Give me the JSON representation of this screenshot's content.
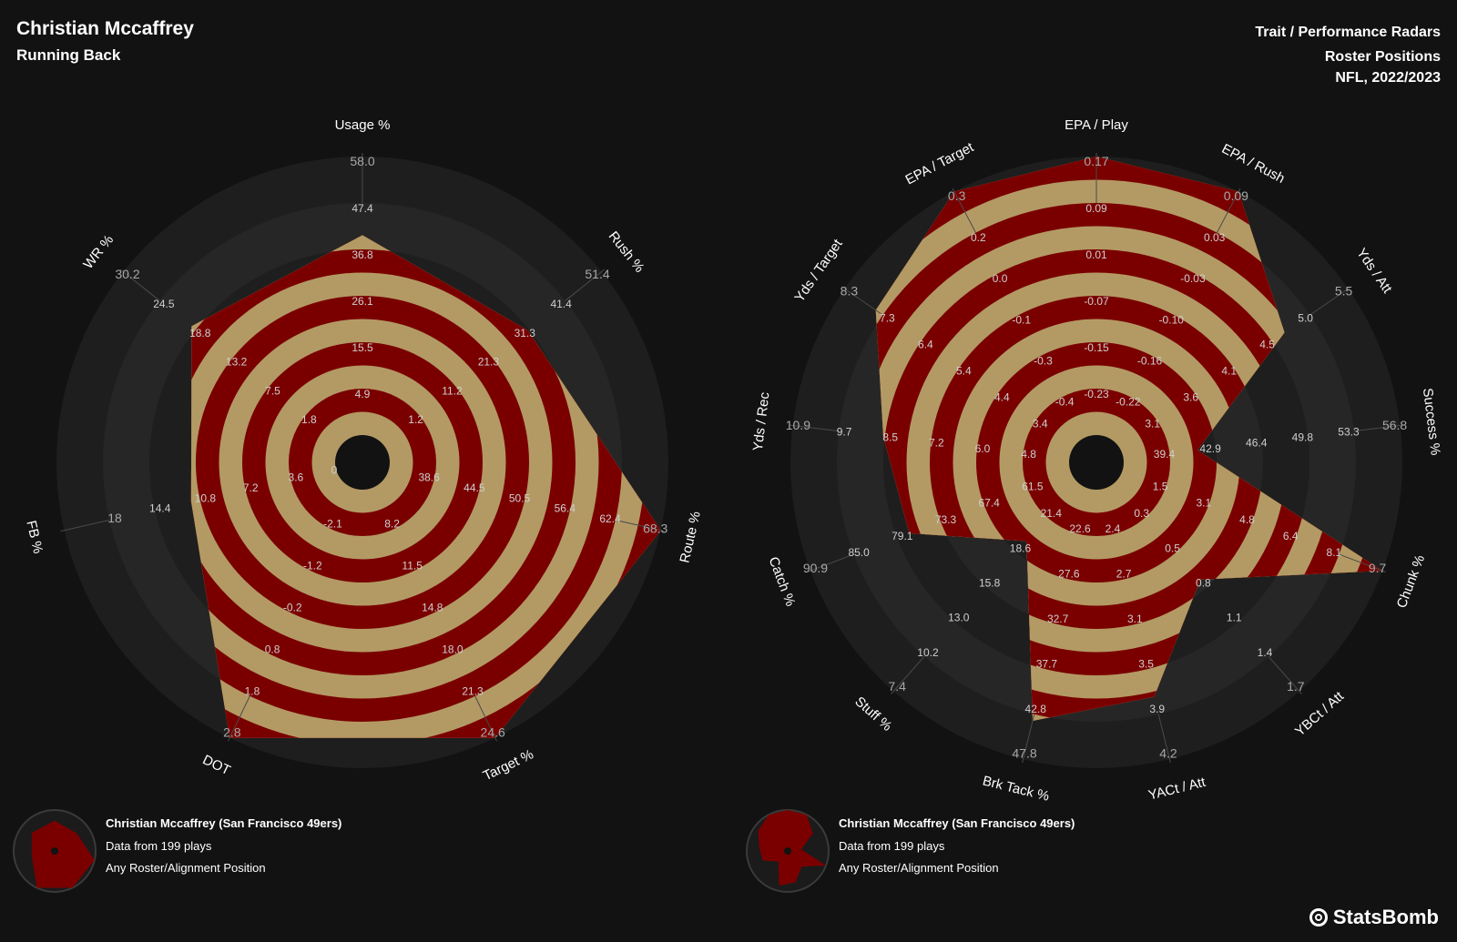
{
  "header": {
    "player_name": "Christian Mccaffrey",
    "position": "Running Back",
    "title": "Trait / Performance Radars",
    "subtitle": "Roster Positions",
    "season": "NFL, 2022/2023"
  },
  "colors": {
    "background": "#121212",
    "ring_dark": "#1e1e1e",
    "ring_light": "#262626",
    "fill_red": "#7a0000",
    "fill_gold": "#b39a64"
  },
  "chart_data": [
    {
      "type": "radar",
      "name": "Trait radar",
      "axes": [
        {
          "label": "Usage %",
          "ticks": [
            "4.9",
            "15.5",
            "26.1",
            "36.8",
            "47.4",
            "58.0"
          ],
          "value": 40
        },
        {
          "label": "Rush %",
          "ticks": [
            "1.2",
            "11.2",
            "21.3",
            "31.3",
            "41.4",
            "51.4"
          ],
          "value": 31
        },
        {
          "label": "Route %",
          "ticks": [
            "38.6",
            "44.5",
            "50.5",
            "56.4",
            "62.4",
            "68.3"
          ],
          "value": 68.3
        },
        {
          "label": "Target %",
          "ticks": [
            "8.2",
            "11.5",
            "14.8",
            "18.0",
            "21.3",
            "24.6"
          ],
          "value": 24.6
        },
        {
          "label": "DOT",
          "ticks": [
            "-2.1",
            "-1.2",
            "-0.2",
            "0.8",
            "1.8",
            "2.8"
          ],
          "value": 2.8
        },
        {
          "label": "FB %",
          "ticks": [
            "3.6",
            "7.2",
            "10.8",
            "14.4",
            "18"
          ],
          "value": 11.5
        },
        {
          "label": "WR %",
          "ticks": [
            "1.8",
            "7.5",
            "13.2",
            "18.8",
            "24.5",
            "30.2"
          ],
          "value": 19.5
        }
      ],
      "extra_tick_labels": [
        "0"
      ]
    },
    {
      "type": "radar",
      "name": "Performance radar",
      "axes": [
        {
          "label": "EPA / Play",
          "ticks": [
            "-0.23",
            "-0.15",
            "-0.07",
            "0.01",
            "0.09",
            "0.17"
          ],
          "value": 0.17
        },
        {
          "label": "EPA / Rush",
          "ticks": [
            "-0.22",
            "-0.16",
            "-0.10",
            "-0.03",
            "0.03",
            "0.09"
          ],
          "value": 0.09
        },
        {
          "label": "Yds / Att",
          "ticks": [
            "3.1",
            "3.6",
            "4.1",
            "4.5",
            "5.0",
            "5.5"
          ],
          "value": 4.7
        },
        {
          "label": "Success %",
          "ticks": [
            "39.4",
            "42.9",
            "46.4",
            "49.8",
            "53.3",
            "56.8"
          ],
          "value": 41.5
        },
        {
          "label": "Chunk %",
          "ticks": [
            "1.5",
            "3.1",
            "4.8",
            "6.4",
            "8.1",
            "9.7"
          ],
          "value": 9.7
        },
        {
          "label": "YBCt / Att",
          "ticks": [
            "0.3",
            "0.5",
            "0.8",
            "1.1",
            "1.4",
            "1.7"
          ],
          "value": 0.8
        },
        {
          "label": "YACt / Att",
          "ticks": [
            "2.4",
            "2.7",
            "3.1",
            "3.5",
            "3.9",
            "4.2"
          ],
          "value": 3.7
        },
        {
          "label": "Brk Tack %",
          "ticks": [
            "22.6",
            "27.6",
            "32.7",
            "37.7",
            "42.8",
            "47.8"
          ],
          "value": 43.5
        },
        {
          "label": "Stuff %",
          "ticks": [
            "21.4",
            "18.6",
            "15.8",
            "13.0",
            "10.2",
            "7.4"
          ],
          "value": 19.5
        },
        {
          "label": "Catch %",
          "ticks": [
            "61.5",
            "67.4",
            "73.3",
            "79.1",
            "85.0",
            "90.9"
          ],
          "value": 77.5
        },
        {
          "label": "Yds / Rec",
          "ticks": [
            "4.8",
            "6.0",
            "7.2",
            "8.5",
            "9.7",
            "10.9"
          ],
          "value": 8.5
        },
        {
          "label": "Yds / Target",
          "ticks": [
            "3.4",
            "4.4",
            "5.4",
            "6.4",
            "7.3",
            "8.3"
          ],
          "value": 7.5
        },
        {
          "label": "EPA / Target",
          "ticks": [
            "-0.4",
            "-0.3",
            "-0.1",
            "0.0",
            "0.2",
            "0.3"
          ],
          "value": 0.3
        }
      ]
    }
  ],
  "legends": [
    {
      "team_line": "Christian Mccaffrey (San Francisco 49ers)",
      "plays_line": "Data from 199 plays",
      "position_line": "Any Roster/Alignment Position"
    },
    {
      "team_line": "Christian Mccaffrey (San Francisco 49ers)",
      "plays_line": "Data from 199 plays",
      "position_line": "Any Roster/Alignment Position"
    }
  ],
  "brand": "StatsBomb"
}
